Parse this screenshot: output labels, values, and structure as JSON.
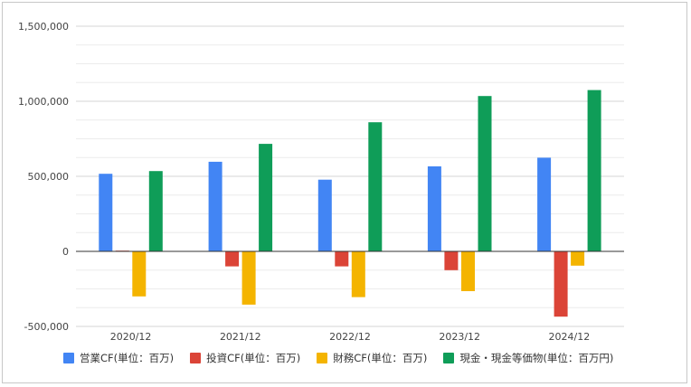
{
  "chart_data": {
    "type": "bar",
    "categories": [
      "2020/12",
      "2021/12",
      "2022/12",
      "2023/12",
      "2024/12"
    ],
    "series": [
      {
        "name": "営業CF(単位：百万)",
        "color": "#4285F4",
        "values": [
          517000,
          597000,
          478000,
          566000,
          624000
        ]
      },
      {
        "name": "投資CF(単位：百万)",
        "color": "#DB4437",
        "values": [
          5000,
          -100000,
          -100000,
          -125000,
          -435000
        ]
      },
      {
        "name": "財務CF(単位：百万)",
        "color": "#F4B400",
        "values": [
          -300000,
          -355000,
          -305000,
          -265000,
          -95000
        ]
      },
      {
        "name": "現金・現金等価物(単位：百万円)",
        "color": "#0F9D58",
        "values": [
          535000,
          716000,
          860000,
          1035000,
          1075000
        ]
      }
    ],
    "yticks": [
      -500000,
      0,
      500000,
      1000000,
      1500000
    ],
    "ytick_labels": [
      "-500,000",
      "0",
      "500,000",
      "1,000,000",
      "1,500,000"
    ],
    "ylim": [
      -500000,
      1500000
    ],
    "grid": true,
    "legend": "bottom"
  }
}
